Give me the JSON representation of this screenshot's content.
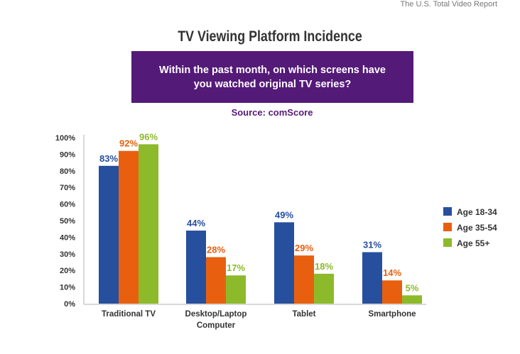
{
  "header": {
    "report": "The U.S. Total Video Report"
  },
  "chart_data": {
    "type": "bar",
    "title": "TV Viewing Platform Incidence",
    "subtitle": "Within the past month, on which screens have you watched original TV series?",
    "source": "Source: comScore",
    "categories": [
      "Traditional TV",
      "Desktop/Laptop Computer",
      "Tablet",
      "Smartphone"
    ],
    "series": [
      {
        "name": "Age 18-34",
        "color": "#264f9e",
        "values": [
          83,
          44,
          49,
          31
        ]
      },
      {
        "name": "Age 35-54",
        "color": "#e8600f",
        "values": [
          92,
          28,
          29,
          14
        ]
      },
      {
        "name": "Age 55+",
        "color": "#8cba2a",
        "values": [
          96,
          17,
          18,
          5
        ]
      }
    ],
    "yticks": [
      "0%",
      "10%",
      "20%",
      "30%",
      "40%",
      "50%",
      "60%",
      "70%",
      "80%",
      "90%",
      "100%"
    ],
    "ylim": [
      0,
      100
    ],
    "legend": "right",
    "grid": false
  }
}
